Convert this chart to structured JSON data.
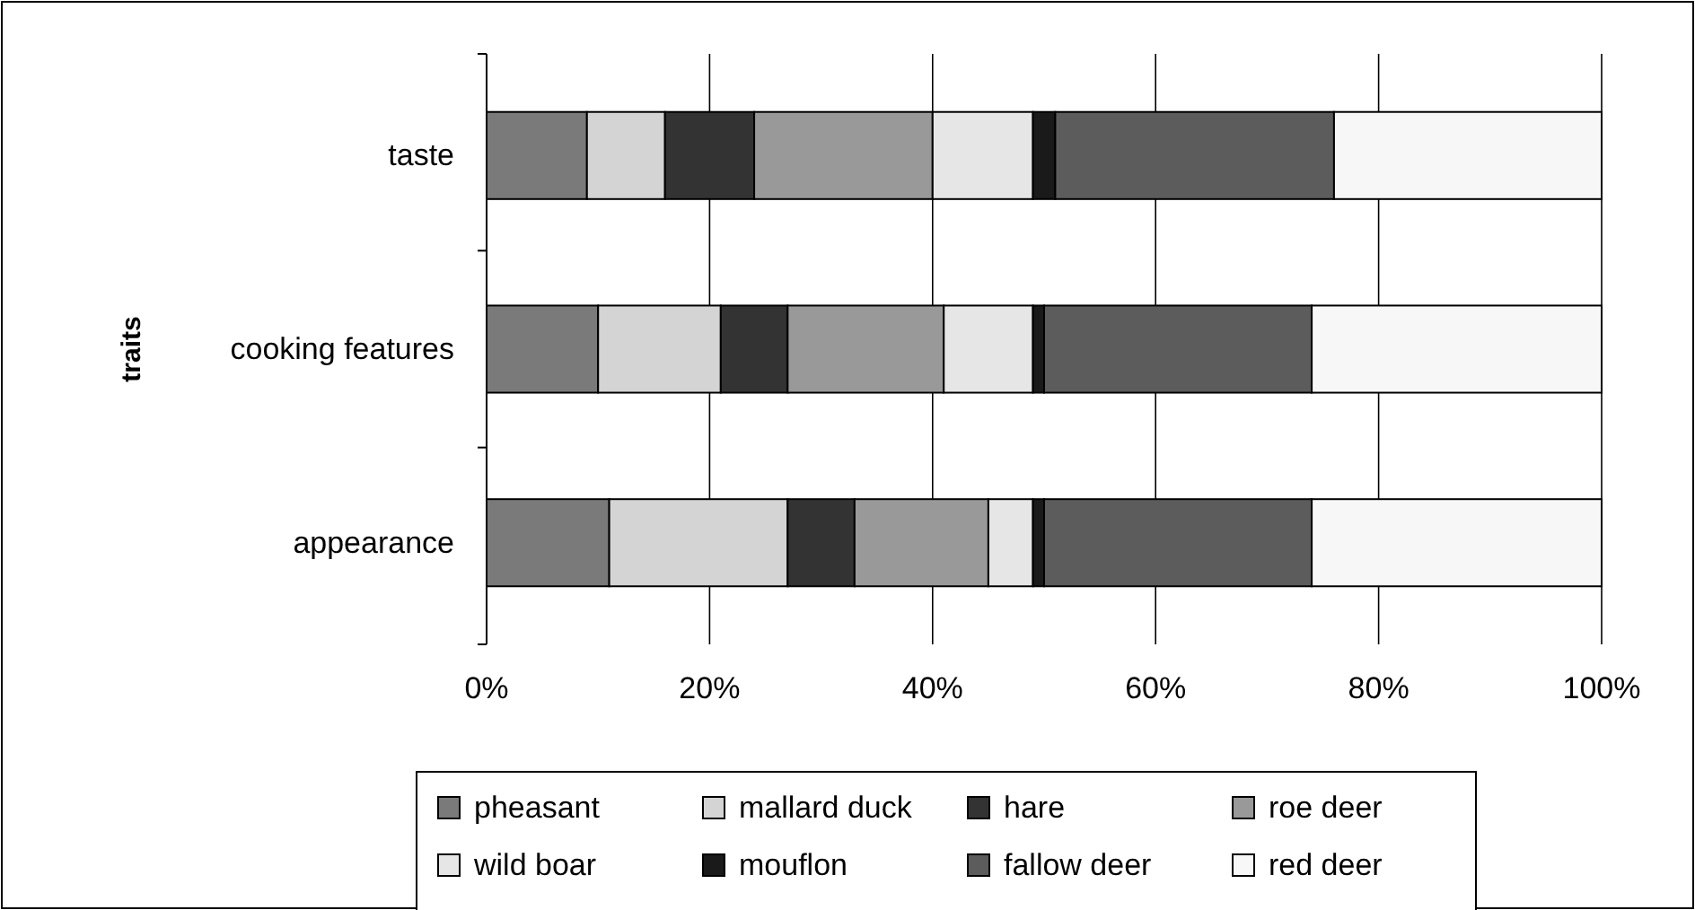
{
  "chart_data": {
    "type": "bar",
    "orientation": "horizontal",
    "stacked": true,
    "ylabel": "traits",
    "categories": [
      "taste",
      "cooking features",
      "appearance"
    ],
    "series": [
      {
        "name": "pheasant",
        "color": "#7a7a7a",
        "values": [
          9,
          10,
          11
        ]
      },
      {
        "name": "mallard duck",
        "color": "#d4d4d4",
        "values": [
          7,
          11,
          16
        ]
      },
      {
        "name": "hare",
        "color": "#333333",
        "values": [
          8,
          6,
          6
        ]
      },
      {
        "name": "roe deer",
        "color": "#999999",
        "values": [
          16,
          14,
          12
        ]
      },
      {
        "name": "wild boar",
        "color": "#e6e6e6",
        "values": [
          9,
          8,
          4
        ]
      },
      {
        "name": "mouflon",
        "color": "#1a1a1a",
        "values": [
          2,
          1,
          1
        ]
      },
      {
        "name": "fallow deer",
        "color": "#5c5c5c",
        "values": [
          25,
          24,
          24
        ]
      },
      {
        "name": "red deer",
        "color": "#f7f7f7",
        "values": [
          24,
          26,
          26
        ]
      }
    ],
    "xlim": [
      0,
      100
    ],
    "xticks": [
      {
        "value": 0,
        "label": "0%"
      },
      {
        "value": 20,
        "label": "20%"
      },
      {
        "value": 40,
        "label": "40%"
      },
      {
        "value": 60,
        "label": "60%"
      },
      {
        "value": 80,
        "label": "80%"
      },
      {
        "value": 100,
        "label": "100%"
      }
    ],
    "grid": "x",
    "legend": "bottom"
  }
}
